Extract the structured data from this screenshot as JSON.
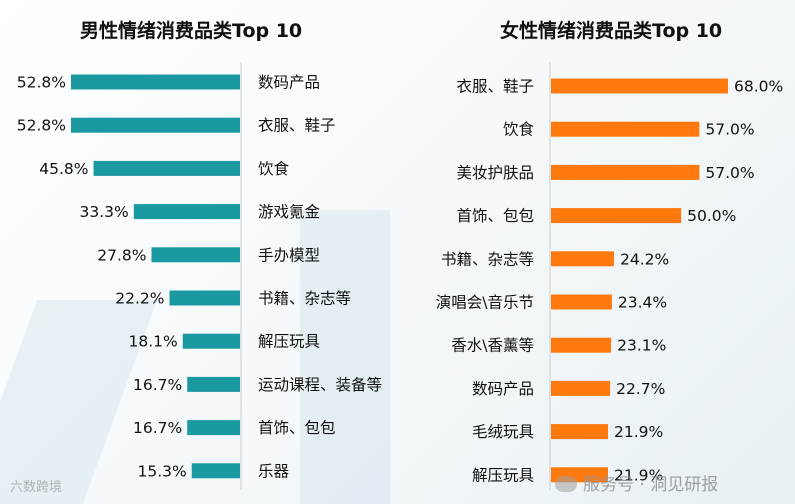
{
  "chart_data": [
    {
      "type": "bar",
      "orientation": "horizontal",
      "title": "男性情绪消费品类Top 10",
      "bar_color": "#1a9aa0",
      "categories": [
        "数码产品",
        "衣服、鞋子",
        "饮食",
        "游戏氪金",
        "手办模型",
        "书籍、杂志等",
        "解压玩具",
        "运动课程、装备等",
        "首饰、包包",
        "乐器"
      ],
      "values": [
        52.8,
        52.8,
        45.8,
        33.3,
        27.8,
        22.2,
        18.1,
        16.7,
        16.7,
        15.3
      ],
      "value_labels": [
        "52.8%",
        "52.8%",
        "45.8%",
        "33.3%",
        "27.8%",
        "22.2%",
        "18.1%",
        "16.7%",
        "16.7%",
        "15.3%"
      ],
      "xlim": [
        0,
        60
      ],
      "direction": "bars extend leftward from category axis"
    },
    {
      "type": "bar",
      "orientation": "horizontal",
      "title": "女性情绪消费品类Top 10",
      "bar_color": "#ff7a0e",
      "categories": [
        "衣服、鞋子",
        "饮食",
        "美妆护肤品",
        "首饰、包包",
        "书籍、杂志等",
        "演唱会\\音乐节",
        "香水\\香薰等",
        "数码产品",
        "毛绒玩具",
        "解压玩具"
      ],
      "values": [
        68.0,
        57.0,
        57.0,
        50.0,
        24.2,
        23.4,
        23.1,
        22.7,
        21.9,
        21.9
      ],
      "value_labels": [
        "68.0%",
        "57.0%",
        "57.0%",
        "50.0%",
        "24.2%",
        "23.4%",
        "23.1%",
        "22.7%",
        "21.9%",
        "21.9%"
      ],
      "xlim": [
        0,
        75
      ],
      "direction": "bars extend rightward from category axis"
    }
  ],
  "watermarks": {
    "left": "六数跨境",
    "right": "服务号 · 洞见研报"
  },
  "colors": {
    "axis": "#cccccc"
  }
}
